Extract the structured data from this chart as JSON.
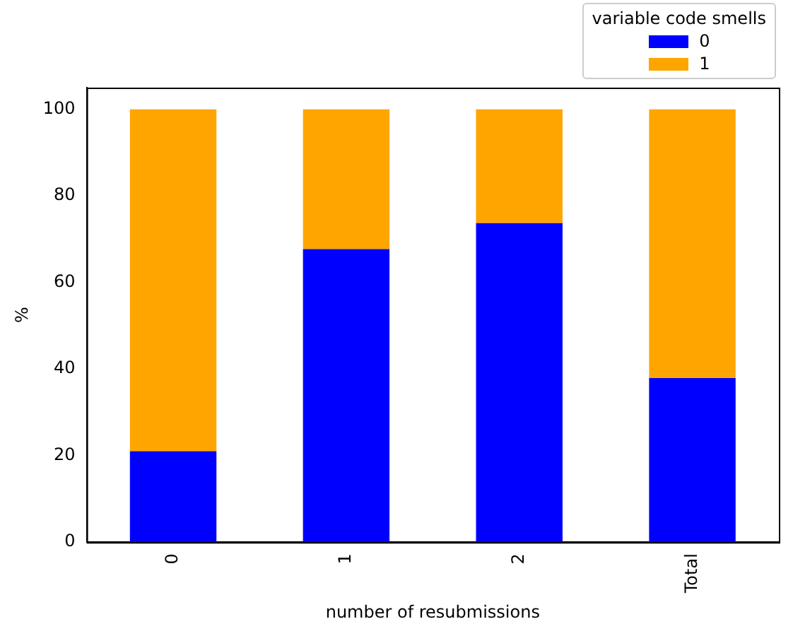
{
  "chart_data": {
    "type": "bar",
    "stacked": true,
    "xlabel": "number of resubmissions",
    "ylabel": "%",
    "legend_title": "variable code smells",
    "legend": "top right",
    "grid": false,
    "categories": [
      "0",
      "1",
      "2",
      "Total"
    ],
    "series": [
      {
        "name": "0",
        "color": "#0000ff",
        "values": [
          21.0,
          67.7,
          73.7,
          37.9
        ]
      },
      {
        "name": "1",
        "color": "#ffa500",
        "values": [
          79.0,
          32.3,
          26.3,
          62.1
        ]
      }
    ],
    "ylim": [
      0,
      105
    ],
    "yticks": [
      0,
      20,
      40,
      60,
      80,
      100
    ]
  }
}
